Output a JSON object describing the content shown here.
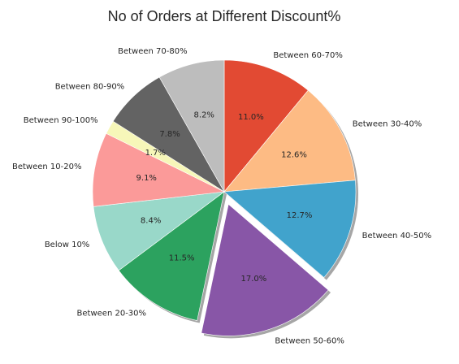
{
  "chart_data": {
    "type": "pie",
    "title": "No of Orders at Different Discount%",
    "start_angle_deg": 90,
    "direction": "clockwise",
    "autopct_format": "%.1f%%",
    "shadow": true,
    "slices": [
      {
        "label": "Between 60-70%",
        "value": 11.0,
        "color": "#e24a33",
        "explode": false
      },
      {
        "label": "Between 30-40%",
        "value": 12.6,
        "color": "#fdbb84",
        "explode": false
      },
      {
        "label": "Between 40-50%",
        "value": 12.7,
        "color": "#41a3cc",
        "explode": false
      },
      {
        "label": "Between 50-60%",
        "value": 17.0,
        "color": "#8856a7",
        "explode": true
      },
      {
        "label": "Between 20-30%",
        "value": 11.5,
        "color": "#2ca25f",
        "explode": false
      },
      {
        "label": "Below 10%",
        "value": 8.4,
        "color": "#99d8c9",
        "explode": false
      },
      {
        "label": "Between 10-20%",
        "value": 9.1,
        "color": "#fb9a99",
        "explode": false
      },
      {
        "label": "Between 90-100%",
        "value": 1.7,
        "color": "#f7f7b9",
        "explode": false
      },
      {
        "label": "Between 80-90%",
        "value": 7.8,
        "color": "#636363",
        "explode": false
      },
      {
        "label": "Between 70-80%",
        "value": 8.2,
        "color": "#bdbdbd",
        "explode": false
      }
    ]
  }
}
